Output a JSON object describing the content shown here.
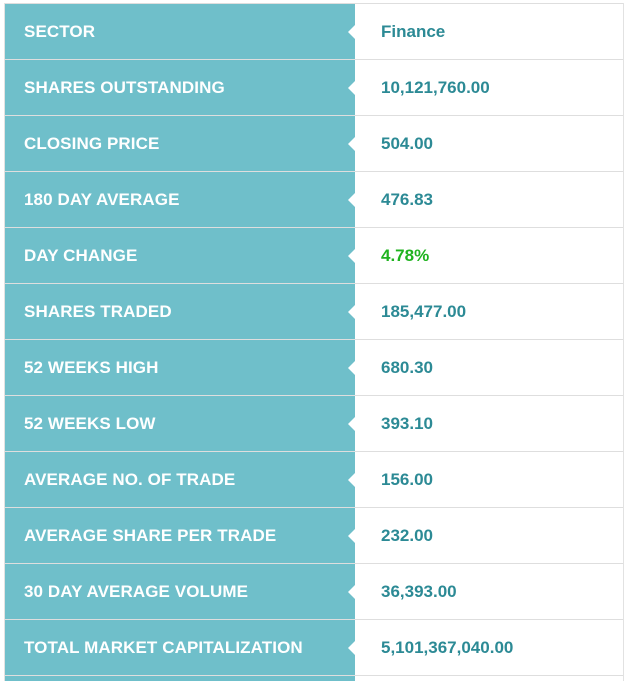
{
  "stats": [
    {
      "label": "SECTOR",
      "value": "Finance"
    },
    {
      "label": "SHARES OUTSTANDING",
      "value": "10,121,760.00"
    },
    {
      "label": "CLOSING PRICE",
      "value": "504.00"
    },
    {
      "label": "180 DAY AVERAGE",
      "value": "476.83"
    },
    {
      "label": "DAY CHANGE",
      "value": "4.78%",
      "status": "positive"
    },
    {
      "label": "SHARES TRADED",
      "value": "185,477.00"
    },
    {
      "label": "52 WEEKS HIGH",
      "value": "680.30"
    },
    {
      "label": "52 WEEKS LOW",
      "value": "393.10"
    },
    {
      "label": "AVERAGE NO. OF TRADE",
      "value": "156.00"
    },
    {
      "label": "AVERAGE SHARE PER TRADE",
      "value": "232.00"
    },
    {
      "label": "30 DAY AVERAGE VOLUME",
      "value": "36,393.00"
    },
    {
      "label": "TOTAL MARKET CAPITALIZATION",
      "value": "5,101,367,040.00"
    }
  ],
  "colors": {
    "label_bg": "#6fbfca",
    "value_text": "#2c8a95",
    "positive_text": "#1fb31f"
  }
}
